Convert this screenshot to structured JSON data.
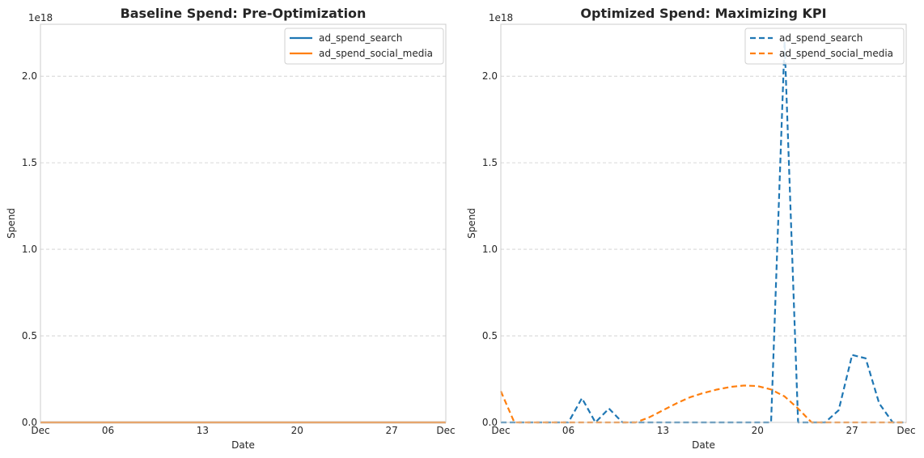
{
  "chart_data": [
    {
      "type": "line",
      "title": "Baseline Spend: Pre-Optimization",
      "xlabel": "Date",
      "ylabel": "Spend",
      "exponent_label": "1e18",
      "xlim": [
        0,
        30
      ],
      "xticks": [
        {
          "x": 0,
          "label": "Dec"
        },
        {
          "x": 5,
          "label": "06"
        },
        {
          "x": 12,
          "label": "13"
        },
        {
          "x": 19,
          "label": "20"
        },
        {
          "x": 26,
          "label": "27"
        },
        {
          "x": 30,
          "label": "Dec"
        }
      ],
      "ylim": [
        0,
        2.3
      ],
      "yticks": [
        {
          "v": 0,
          "label": "0.0"
        },
        {
          "v": 0.5,
          "label": "0.5"
        },
        {
          "v": 1.0,
          "label": "1.0"
        },
        {
          "v": 1.5,
          "label": "1.5"
        },
        {
          "v": 2.0,
          "label": "2.0"
        }
      ],
      "grid": "horizontal-dashed",
      "legend_position": "top-right",
      "line_style": "solid",
      "series": [
        {
          "name": "ad_spend_search",
          "color": "#1f77b4",
          "x": [
            0,
            30
          ],
          "y": [
            0,
            0
          ]
        },
        {
          "name": "ad_spend_social_media",
          "color": "#ff7f0e",
          "x": [
            0,
            30
          ],
          "y": [
            0,
            0
          ]
        }
      ]
    },
    {
      "type": "line",
      "title": "Optimized Spend: Maximizing KPI",
      "xlabel": "Date",
      "ylabel": "Spend",
      "exponent_label": "1e18",
      "xlim": [
        0,
        30
      ],
      "xticks": [
        {
          "x": 0,
          "label": "Dec"
        },
        {
          "x": 5,
          "label": "06"
        },
        {
          "x": 12,
          "label": "13"
        },
        {
          "x": 19,
          "label": "20"
        },
        {
          "x": 26,
          "label": "27"
        },
        {
          "x": 30,
          "label": "Dec"
        }
      ],
      "ylim": [
        0,
        2.3
      ],
      "yticks": [
        {
          "v": 0,
          "label": "0.0"
        },
        {
          "v": 0.5,
          "label": "0.5"
        },
        {
          "v": 1.0,
          "label": "1.0"
        },
        {
          "v": 1.5,
          "label": "1.5"
        },
        {
          "v": 2.0,
          "label": "2.0"
        }
      ],
      "grid": "horizontal-dashed",
      "legend_position": "top-right",
      "line_style": "dashed",
      "series": [
        {
          "name": "ad_spend_search",
          "color": "#1f77b4",
          "x": [
            0,
            1,
            2,
            3,
            4,
            5,
            6,
            7,
            8,
            9,
            10,
            11,
            12,
            13,
            14,
            15,
            16,
            17,
            18,
            19,
            20,
            21,
            22,
            23,
            24,
            25,
            26,
            27,
            28,
            29,
            30
          ],
          "y": [
            0,
            0,
            0,
            0,
            0,
            0,
            0.14,
            0,
            0.08,
            0,
            0,
            0,
            0,
            0,
            0,
            0,
            0,
            0,
            0,
            0,
            0,
            2.2,
            0,
            0,
            0,
            0.07,
            0.39,
            0.37,
            0.11,
            0,
            0
          ]
        },
        {
          "name": "ad_spend_social_media",
          "color": "#ff7f0e",
          "x": [
            0,
            1,
            2,
            3,
            4,
            5,
            6,
            7,
            8,
            9,
            10,
            11,
            12,
            13,
            14,
            15,
            16,
            17,
            18,
            19,
            20,
            21,
            22,
            23,
            24,
            25,
            26,
            27,
            28,
            29,
            30
          ],
          "y": [
            0.18,
            0,
            0,
            0,
            0,
            0,
            0,
            0,
            0,
            0,
            0,
            0.03,
            0.07,
            0.11,
            0.145,
            0.17,
            0.19,
            0.205,
            0.213,
            0.21,
            0.19,
            0.15,
            0.08,
            0,
            0,
            0,
            0,
            0,
            0,
            0,
            0
          ]
        }
      ]
    }
  ]
}
